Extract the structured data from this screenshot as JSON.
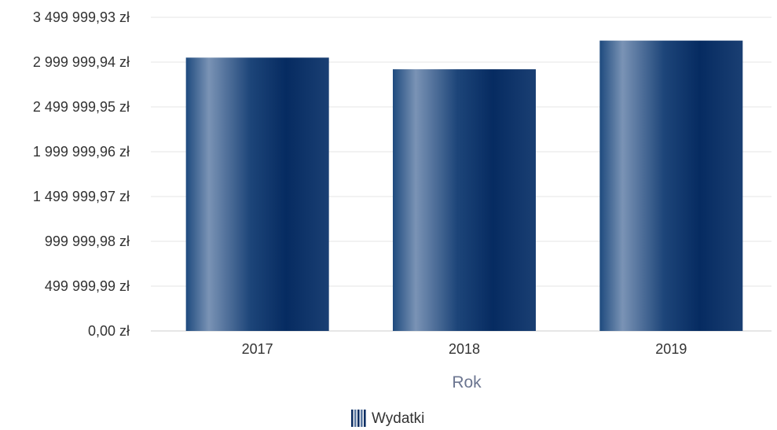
{
  "chart_data": {
    "type": "bar",
    "categories": [
      "2017",
      "2018",
      "2019"
    ],
    "series": [
      {
        "name": "Wydatki",
        "values": [
          3050000,
          2920000,
          3240000
        ]
      }
    ],
    "xlabel": "Rok",
    "ylabel": "",
    "ylim": [
      0,
      3499999.93
    ],
    "yticks": [
      {
        "value": 0,
        "label": "0,00 zł"
      },
      {
        "value": 499999.99,
        "label": "499 999,99 zł"
      },
      {
        "value": 999999.98,
        "label": "999 999,98 zł"
      },
      {
        "value": 1499999.97,
        "label": "1 499 999,97 zł"
      },
      {
        "value": 1999999.96,
        "label": "1 999 999,96 zł"
      },
      {
        "value": 2499999.95,
        "label": "2 499 999,95 zł"
      },
      {
        "value": 2999999.94,
        "label": "2 999 999,94 zł"
      },
      {
        "value": 3499999.93,
        "label": "3 499 999,93 zł"
      }
    ],
    "grid": true,
    "legend": "bottom-center",
    "colors": {
      "bar_dark": "#0d2f63",
      "bar_light": "#7a93b5",
      "grid": "#e6e6e6",
      "axis": "#cccccc"
    }
  }
}
